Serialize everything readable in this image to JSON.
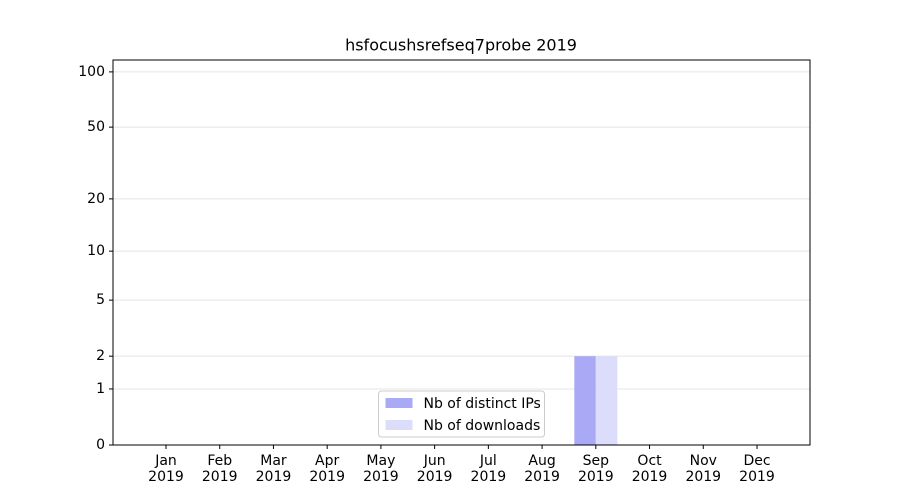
{
  "chart_data": {
    "type": "bar",
    "title": "hsfocushsrefseq7probe 2019",
    "categories": [
      "Jan 2019",
      "Feb 2019",
      "Mar 2019",
      "Apr 2019",
      "May 2019",
      "Jun 2019",
      "Jul 2019",
      "Aug 2019",
      "Sep 2019",
      "Oct 2019",
      "Nov 2019",
      "Dec 2019"
    ],
    "series": [
      {
        "name": "Nb of distinct IPs",
        "color": "#a9a9f6",
        "values": [
          0,
          0,
          0,
          0,
          0,
          0,
          0,
          0,
          2,
          0,
          0,
          0
        ]
      },
      {
        "name": "Nb of downloads",
        "color": "#dcdcfb",
        "values": [
          0,
          0,
          0,
          0,
          0,
          0,
          0,
          0,
          2,
          0,
          0,
          0
        ]
      }
    ],
    "yscale": "log1p",
    "ylim": [
      0,
      116
    ],
    "yticks": [
      0,
      1,
      2,
      5,
      10,
      20,
      50,
      100
    ],
    "grid": true,
    "legend": "lower center"
  }
}
